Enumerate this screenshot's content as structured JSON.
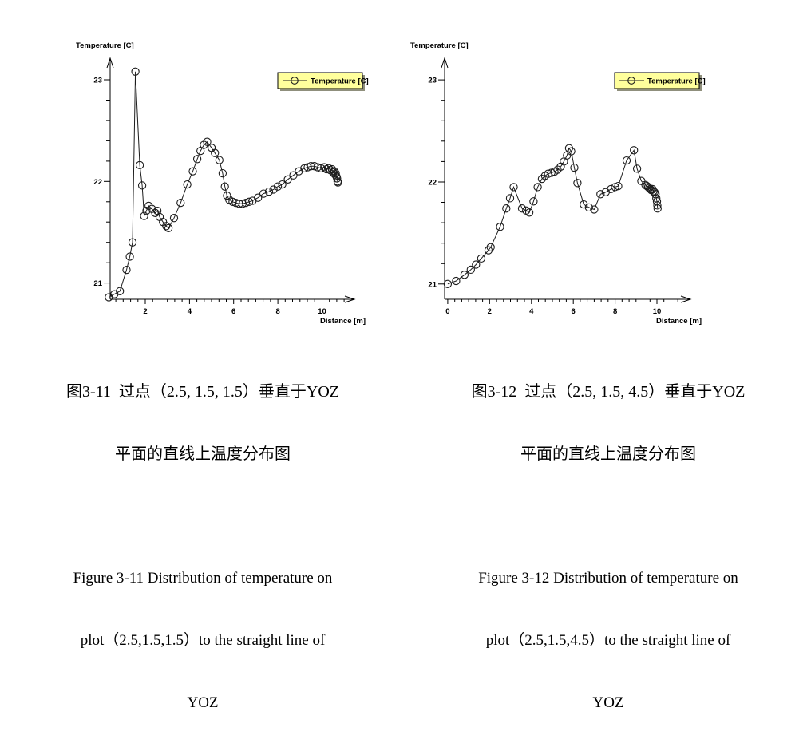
{
  "page": {
    "background": "#ffffff"
  },
  "figures": [
    {
      "caption_cn": [
        "图3-11  过点（2.5, 1.5, 1.5）垂直于YOZ",
        "平面的直线上温度分布图"
      ],
      "caption_en": [
        "Figure 3-11 Distribution of temperature on",
        "plot（2.5,1.5,1.5）to the straight line of",
        "YOZ"
      ]
    },
    {
      "caption_cn": [
        "图3-12  过点（2.5, 1.5, 4.5）垂直于YOZ",
        "平面的直线上温度分布图"
      ],
      "caption_en": [
        "Figure 3-12 Distribution of temperature on",
        "plot（2.5,1.5,4.5）to the straight line of",
        "YOZ"
      ]
    }
  ],
  "chart_data": [
    {
      "type": "line",
      "title": "",
      "xlabel": "Distance [m]",
      "ylabel": "Temperature [C]",
      "legend": {
        "entries": [
          "Temperature [C]"
        ],
        "position": "top-right",
        "bg_color": "#ffff9c",
        "shadow_color": "#8f8f7c",
        "border_color": "#000000"
      },
      "marker": "circle",
      "line_color": "#000000",
      "grid": false,
      "xlim": [
        0.41,
        11.5
      ],
      "ylim": [
        20.84,
        23.22
      ],
      "x_ticks": [
        2,
        4,
        6,
        8,
        10
      ],
      "y_ticks": [
        21,
        22,
        23
      ],
      "x_minor_step": 0.3333,
      "y_minor_step": 0.2,
      "series": [
        {
          "name": "Temperature [C]",
          "points": [
            [
              0.35,
              20.86
            ],
            [
              0.6,
              20.89
            ],
            [
              0.85,
              20.92
            ],
            [
              1.15,
              21.13
            ],
            [
              1.3,
              21.26
            ],
            [
              1.42,
              21.4
            ],
            [
              1.55,
              23.08
            ],
            [
              1.75,
              22.16
            ],
            [
              1.86,
              21.96
            ],
            [
              1.95,
              21.66
            ],
            [
              2.05,
              21.71
            ],
            [
              2.15,
              21.76
            ],
            [
              2.3,
              21.73
            ],
            [
              2.45,
              21.69
            ],
            [
              2.55,
              21.71
            ],
            [
              2.65,
              21.65
            ],
            [
              2.8,
              21.6
            ],
            [
              2.95,
              21.56
            ],
            [
              3.05,
              21.54
            ],
            [
              3.3,
              21.64
            ],
            [
              3.6,
              21.79
            ],
            [
              3.9,
              21.97
            ],
            [
              4.15,
              22.1
            ],
            [
              4.35,
              22.22
            ],
            [
              4.5,
              22.3
            ],
            [
              4.65,
              22.36
            ],
            [
              4.8,
              22.39
            ],
            [
              5.0,
              22.33
            ],
            [
              5.15,
              22.28
            ],
            [
              5.35,
              22.21
            ],
            [
              5.5,
              22.08
            ],
            [
              5.6,
              21.95
            ],
            [
              5.7,
              21.86
            ],
            [
              5.8,
              21.82
            ],
            [
              5.95,
              21.8
            ],
            [
              6.1,
              21.79
            ],
            [
              6.25,
              21.78
            ],
            [
              6.4,
              21.78
            ],
            [
              6.55,
              21.79
            ],
            [
              6.7,
              21.8
            ],
            [
              6.85,
              21.81
            ],
            [
              7.1,
              21.84
            ],
            [
              7.35,
              21.88
            ],
            [
              7.6,
              21.9
            ],
            [
              7.8,
              21.92
            ],
            [
              8.0,
              21.95
            ],
            [
              8.2,
              21.97
            ],
            [
              8.45,
              22.02
            ],
            [
              8.7,
              22.06
            ],
            [
              8.95,
              22.1
            ],
            [
              9.2,
              22.13
            ],
            [
              9.35,
              22.14
            ],
            [
              9.5,
              22.15
            ],
            [
              9.65,
              22.15
            ],
            [
              9.8,
              22.14
            ],
            [
              9.95,
              22.13
            ],
            [
              10.1,
              22.14
            ],
            [
              10.2,
              22.12
            ],
            [
              10.3,
              22.13
            ],
            [
              10.38,
              22.11
            ],
            [
              10.45,
              22.12
            ],
            [
              10.5,
              22.09
            ],
            [
              10.55,
              22.1
            ],
            [
              10.58,
              22.07
            ],
            [
              10.62,
              22.08
            ],
            [
              10.65,
              22.05
            ],
            [
              10.68,
              22.03
            ],
            [
              10.7,
              22.0
            ],
            [
              10.72,
              21.99
            ]
          ]
        }
      ]
    },
    {
      "type": "line",
      "title": "",
      "xlabel": "Distance [m]",
      "ylabel": "Temperature [C]",
      "legend": {
        "entries": [
          "Temperature [C]"
        ],
        "position": "top-right",
        "bg_color": "#ffff9c",
        "shadow_color": "#8f8f7c",
        "border_color": "#000000"
      },
      "marker": "circle",
      "line_color": "#000000",
      "grid": false,
      "xlim": [
        -0.15,
        11.64
      ],
      "ylim": [
        20.85,
        23.22
      ],
      "x_ticks": [
        0,
        2,
        4,
        6,
        8,
        10
      ],
      "y_ticks": [
        21,
        22,
        23
      ],
      "x_minor_step": 0.3333,
      "y_minor_step": 0.2,
      "series": [
        {
          "name": "Temperature [C]",
          "points": [
            [
              0.0,
              21.0
            ],
            [
              0.4,
              21.03
            ],
            [
              0.8,
              21.09
            ],
            [
              1.1,
              21.14
            ],
            [
              1.35,
              21.19
            ],
            [
              1.6,
              21.25
            ],
            [
              1.95,
              21.33
            ],
            [
              2.05,
              21.36
            ],
            [
              2.5,
              21.56
            ],
            [
              2.8,
              21.74
            ],
            [
              2.98,
              21.84
            ],
            [
              3.15,
              21.95
            ],
            [
              3.55,
              21.74
            ],
            [
              3.75,
              21.72
            ],
            [
              3.9,
              21.7
            ],
            [
              4.1,
              21.81
            ],
            [
              4.3,
              21.95
            ],
            [
              4.5,
              22.03
            ],
            [
              4.65,
              22.06
            ],
            [
              4.8,
              22.08
            ],
            [
              4.95,
              22.09
            ],
            [
              5.1,
              22.1
            ],
            [
              5.25,
              22.12
            ],
            [
              5.4,
              22.15
            ],
            [
              5.55,
              22.2
            ],
            [
              5.7,
              22.26
            ],
            [
              5.8,
              22.33
            ],
            [
              5.9,
              22.3
            ],
            [
              6.05,
              22.14
            ],
            [
              6.2,
              21.99
            ],
            [
              6.5,
              21.78
            ],
            [
              6.75,
              21.75
            ],
            [
              7.0,
              21.73
            ],
            [
              7.3,
              21.88
            ],
            [
              7.55,
              21.9
            ],
            [
              7.8,
              21.93
            ],
            [
              8.0,
              21.95
            ],
            [
              8.15,
              21.96
            ],
            [
              8.55,
              22.21
            ],
            [
              8.9,
              22.31
            ],
            [
              9.05,
              22.13
            ],
            [
              9.25,
              22.01
            ],
            [
              9.45,
              21.97
            ],
            [
              9.52,
              21.96
            ],
            [
              9.58,
              21.95
            ],
            [
              9.63,
              21.94
            ],
            [
              9.68,
              21.93
            ],
            [
              9.73,
              21.92
            ],
            [
              9.78,
              21.93
            ],
            [
              9.83,
              21.91
            ],
            [
              9.88,
              21.9
            ],
            [
              9.93,
              21.88
            ],
            [
              9.97,
              21.84
            ],
            [
              10.0,
              21.81
            ],
            [
              10.02,
              21.77
            ],
            [
              10.03,
              21.74
            ]
          ]
        }
      ]
    }
  ]
}
